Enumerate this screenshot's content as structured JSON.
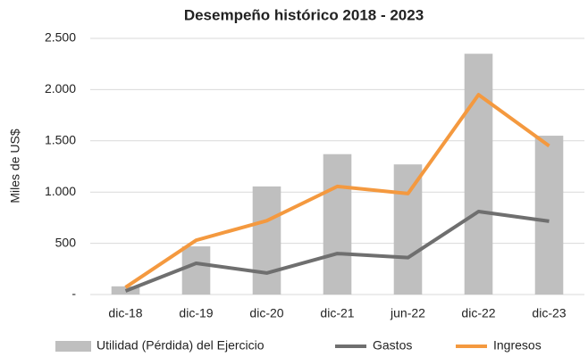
{
  "chart_data": {
    "type": "bar_line",
    "title": "Desempeño histórico 2018 - 2023",
    "y_label": "Miles de US$",
    "categories": [
      "dic-18",
      "dic-19",
      "dic-20",
      "dic-21",
      "jun-22",
      "dic-22",
      "dic-23"
    ],
    "series": [
      {
        "name": "Utilidad (Pérdida) del Ejercicio",
        "type": "bar",
        "color": "#bfbfbf",
        "values": [
          80,
          470,
          1055,
          1370,
          1270,
          2350,
          1550
        ]
      },
      {
        "name": "Gastos",
        "type": "line",
        "color": "#6f6f6f",
        "values": [
          35,
          305,
          210,
          400,
          360,
          810,
          715
        ]
      },
      {
        "name": "Ingresos",
        "type": "line",
        "color": "#f4993f",
        "values": [
          70,
          530,
          720,
          1055,
          985,
          1950,
          1450
        ]
      }
    ],
    "ylim": [
      0,
      2500
    ],
    "yticks": [
      {
        "value": 0,
        "label": "-"
      },
      500,
      {
        "value": 1000,
        "label": "1.000"
      },
      {
        "value": 1500,
        "label": "1.500"
      },
      {
        "value": 2000,
        "label": "2.000"
      },
      {
        "value": 2500,
        "label": "2.500"
      }
    ],
    "grid": true,
    "legend": "bottom"
  }
}
